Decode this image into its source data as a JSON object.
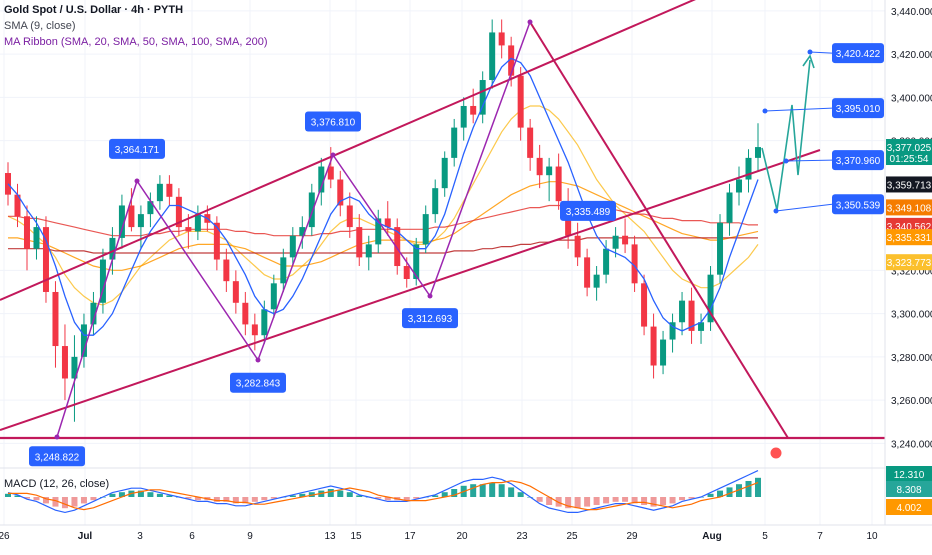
{
  "header": {
    "title": "Gold Spot / U.S. Dollar · 4h · PYTH",
    "sma": "SMA (9, close)",
    "ribbon": "MA Ribbon (SMA, 20, SMA, 50, SMA, 100, SMA, 200)"
  },
  "macd_label": "MACD (12, 26, close)",
  "colors": {
    "up": "#089981",
    "down": "#f23645",
    "trendline": "#c2185b",
    "swing": "#9c27b0",
    "forecast": "#26a69a",
    "label_bg": "#2962ff"
  },
  "chart_data": {
    "type": "candlestick",
    "y_axis": {
      "min": 3230,
      "max": 3445,
      "ticks": [
        "3,440.000",
        "3,420.000",
        "3,400.000",
        "3,380.000",
        "3,320.000",
        "3,300.000",
        "3,280.000",
        "3,260.000",
        "3,240.000"
      ]
    },
    "x_axis": {
      "ticks": [
        "26",
        "Jul",
        "3",
        "6",
        "9",
        "13",
        "15",
        "17",
        "20",
        "23",
        "25",
        "29",
        "Aug",
        "5",
        "7",
        "10"
      ]
    },
    "price_labels": [
      {
        "text": "3,377.025",
        "sub": "01:25:54",
        "value": 3377.025,
        "color": "#089981"
      },
      {
        "text": "3,359.713",
        "value": 3359.713,
        "color": "#131722"
      },
      {
        "text": "3,349.108",
        "value": 3349.108,
        "color": "#f57c00"
      },
      {
        "text": "3,340.562",
        "value": 3340.562,
        "color": "#e53935"
      },
      {
        "text": "3,335.331",
        "value": 3335.331,
        "color": "#ff9800"
      },
      {
        "text": "3,323.773",
        "value": 3323.773,
        "color": "#fbc02d"
      }
    ],
    "point_callouts": [
      {
        "text": "3,248.822",
        "x": 57,
        "price": 3248.822
      },
      {
        "text": "3,364.171",
        "x": 137,
        "price": 3364.171
      },
      {
        "text": "3,282.843",
        "x": 258,
        "price": 3282.843
      },
      {
        "text": "3,376.810",
        "x": 333,
        "price": 3376.81
      },
      {
        "text": "3,312.693",
        "x": 430,
        "price": 3312.693
      },
      {
        "text": "3,335.489",
        "x": 588,
        "price": 3335.489
      }
    ],
    "forecast_labels": [
      {
        "text": "3,420.422",
        "price": 3420.422
      },
      {
        "text": "3,395.010",
        "price": 3395.01
      },
      {
        "text": "3,370.960",
        "price": 3370.96
      },
      {
        "text": "3,350.539",
        "price": 3350.539
      }
    ],
    "macd_labels": [
      {
        "text": "12.310",
        "color": "#089981"
      },
      {
        "text": "8.308",
        "color": "#26a69a"
      },
      {
        "text": "4.002",
        "color": "#ff9800"
      }
    ],
    "candles": [
      [
        3365,
        3370,
        3350,
        3355
      ],
      [
        3355,
        3360,
        3340,
        3345
      ],
      [
        3345,
        3350,
        3320,
        3330
      ],
      [
        3330,
        3345,
        3325,
        3340
      ],
      [
        3340,
        3345,
        3305,
        3310
      ],
      [
        3310,
        3315,
        3275,
        3285
      ],
      [
        3285,
        3295,
        3260,
        3270
      ],
      [
        3270,
        3290,
        3250,
        3280
      ],
      [
        3280,
        3300,
        3275,
        3295
      ],
      [
        3295,
        3310,
        3290,
        3305
      ],
      [
        3305,
        3330,
        3300,
        3325
      ],
      [
        3325,
        3340,
        3318,
        3335
      ],
      [
        3335,
        3355,
        3330,
        3350
      ],
      [
        3350,
        3358,
        3338,
        3340
      ],
      [
        3340,
        3350,
        3330,
        3346
      ],
      [
        3346,
        3356,
        3340,
        3352
      ],
      [
        3352,
        3364,
        3348,
        3360
      ],
      [
        3360,
        3364,
        3350,
        3354
      ],
      [
        3354,
        3358,
        3336,
        3340
      ],
      [
        3340,
        3346,
        3330,
        3338
      ],
      [
        3338,
        3350,
        3334,
        3346
      ],
      [
        3346,
        3350,
        3338,
        3342
      ],
      [
        3342,
        3345,
        3320,
        3325
      ],
      [
        3325,
        3330,
        3310,
        3315
      ],
      [
        3315,
        3320,
        3300,
        3305
      ],
      [
        3305,
        3310,
        3290,
        3295
      ],
      [
        3295,
        3300,
        3283,
        3290
      ],
      [
        3290,
        3306,
        3286,
        3302
      ],
      [
        3302,
        3318,
        3298,
        3314
      ],
      [
        3314,
        3330,
        3310,
        3326
      ],
      [
        3326,
        3340,
        3322,
        3336
      ],
      [
        3336,
        3345,
        3330,
        3340
      ],
      [
        3340,
        3360,
        3336,
        3356
      ],
      [
        3356,
        3372,
        3350,
        3368
      ],
      [
        3368,
        3377,
        3358,
        3362
      ],
      [
        3362,
        3366,
        3345,
        3350
      ],
      [
        3350,
        3356,
        3335,
        3340
      ],
      [
        3340,
        3346,
        3322,
        3326
      ],
      [
        3326,
        3336,
        3320,
        3332
      ],
      [
        3332,
        3348,
        3328,
        3344
      ],
      [
        3344,
        3352,
        3336,
        3340
      ],
      [
        3340,
        3344,
        3318,
        3322
      ],
      [
        3322,
        3326,
        3312,
        3316
      ],
      [
        3316,
        3335,
        3313,
        3332
      ],
      [
        3332,
        3350,
        3328,
        3346
      ],
      [
        3346,
        3362,
        3342,
        3358
      ],
      [
        3358,
        3375,
        3354,
        3372
      ],
      [
        3372,
        3390,
        3368,
        3386
      ],
      [
        3386,
        3400,
        3380,
        3396
      ],
      [
        3396,
        3404,
        3388,
        3392
      ],
      [
        3392,
        3412,
        3388,
        3408
      ],
      [
        3408,
        3436,
        3404,
        3430
      ],
      [
        3430,
        3436,
        3418,
        3424
      ],
      [
        3424,
        3428,
        3405,
        3410
      ],
      [
        3410,
        3414,
        3380,
        3386
      ],
      [
        3386,
        3390,
        3366,
        3372
      ],
      [
        3372,
        3378,
        3358,
        3364
      ],
      [
        3364,
        3372,
        3352,
        3368
      ],
      [
        3368,
        3374,
        3348,
        3352
      ],
      [
        3352,
        3358,
        3330,
        3336
      ],
      [
        3336,
        3342,
        3322,
        3326
      ],
      [
        3326,
        3330,
        3308,
        3312
      ],
      [
        3312,
        3322,
        3306,
        3318
      ],
      [
        3318,
        3334,
        3314,
        3330
      ],
      [
        3330,
        3340,
        3326,
        3336
      ],
      [
        3336,
        3344,
        3328,
        3332
      ],
      [
        3332,
        3336,
        3310,
        3314
      ],
      [
        3314,
        3318,
        3290,
        3294
      ],
      [
        3294,
        3300,
        3270,
        3276
      ],
      [
        3276,
        3292,
        3272,
        3288
      ],
      [
        3288,
        3300,
        3282,
        3296
      ],
      [
        3296,
        3310,
        3290,
        3306
      ],
      [
        3306,
        3312,
        3286,
        3292
      ],
      [
        3292,
        3300,
        3286,
        3296
      ],
      [
        3296,
        3322,
        3292,
        3318
      ],
      [
        3318,
        3346,
        3314,
        3342
      ],
      [
        3342,
        3360,
        3336,
        3356
      ],
      [
        3356,
        3368,
        3350,
        3362
      ],
      [
        3362,
        3376,
        3356,
        3372
      ],
      [
        3372,
        3388,
        3366,
        3377
      ]
    ],
    "sma9": [
      3360,
      3355,
      3348,
      3342,
      3334,
      3322,
      3308,
      3296,
      3290,
      3290,
      3294,
      3300,
      3310,
      3320,
      3330,
      3338,
      3344,
      3350,
      3350,
      3348,
      3346,
      3344,
      3340,
      3334,
      3326,
      3318,
      3308,
      3302,
      3300,
      3302,
      3308,
      3316,
      3326,
      3336,
      3346,
      3352,
      3354,
      3352,
      3346,
      3342,
      3340,
      3338,
      3334,
      3330,
      3330,
      3336,
      3346,
      3360,
      3374,
      3386,
      3396,
      3406,
      3414,
      3418,
      3416,
      3410,
      3400,
      3390,
      3380,
      3370,
      3358,
      3346,
      3336,
      3330,
      3328,
      3326,
      3322,
      3316,
      3306,
      3298,
      3294,
      3292,
      3294,
      3296,
      3302,
      3312,
      3326,
      3338,
      3350,
      3362
    ],
    "ribbon": [
      [
        3345,
        3343,
        3340,
        3336,
        3332,
        3326,
        3318,
        3312,
        3308,
        3305,
        3304,
        3306,
        3310,
        3316,
        3322,
        3326,
        3330,
        3334,
        3336,
        3338,
        3338,
        3338,
        3336,
        3334,
        3330,
        3326,
        3322,
        3318,
        3316,
        3316,
        3318,
        3322,
        3326,
        3332,
        3338,
        3342,
        3344,
        3344,
        3342,
        3340,
        3338,
        3336,
        3334,
        3332,
        3332,
        3334,
        3338,
        3344,
        3352,
        3360,
        3368,
        3376,
        3384,
        3390,
        3394,
        3396,
        3396,
        3394,
        3390,
        3384,
        3378,
        3370,
        3362,
        3356,
        3350,
        3346,
        3342,
        3338,
        3332,
        3326,
        3320,
        3316,
        3314,
        3312,
        3312,
        3314,
        3318,
        3322,
        3326,
        3332
      ],
      [
        3335,
        3335,
        3334,
        3333,
        3332,
        3330,
        3328,
        3326,
        3324,
        3322,
        3321,
        3320,
        3320,
        3321,
        3322,
        3324,
        3326,
        3328,
        3330,
        3331,
        3332,
        3332,
        3332,
        3332,
        3331,
        3330,
        3328,
        3326,
        3324,
        3322,
        3322,
        3322,
        3323,
        3324,
        3326,
        3328,
        3330,
        3332,
        3333,
        3334,
        3334,
        3334,
        3334,
        3333,
        3333,
        3334,
        3335,
        3337,
        3340,
        3343,
        3346,
        3349,
        3352,
        3355,
        3357,
        3359,
        3360,
        3361,
        3361,
        3360,
        3359,
        3357,
        3355,
        3353,
        3351,
        3349,
        3347,
        3345,
        3343,
        3341,
        3339,
        3337,
        3336,
        3335,
        3334,
        3334,
        3335,
        3336,
        3337,
        3338
      ],
      [
        3345,
        3345,
        3344,
        3344,
        3343,
        3342,
        3341,
        3340,
        3339,
        3338,
        3337,
        3336,
        3336,
        3336,
        3336,
        3337,
        3337,
        3338,
        3338,
        3339,
        3339,
        3339,
        3339,
        3339,
        3338,
        3338,
        3337,
        3337,
        3336,
        3336,
        3336,
        3336,
        3336,
        3337,
        3337,
        3338,
        3338,
        3339,
        3339,
        3339,
        3339,
        3339,
        3339,
        3339,
        3339,
        3340,
        3340,
        3341,
        3342,
        3343,
        3344,
        3345,
        3346,
        3347,
        3348,
        3349,
        3349,
        3350,
        3350,
        3350,
        3350,
        3349,
        3349,
        3348,
        3348,
        3347,
        3346,
        3346,
        3345,
        3344,
        3344,
        3343,
        3343,
        3343,
        3342,
        3342,
        3342,
        3342,
        3341,
        3341
      ],
      [
        3330,
        3330,
        3330,
        3330,
        3330,
        3329,
        3329,
        3329,
        3329,
        3328,
        3328,
        3328,
        3328,
        3328,
        3328,
        3328,
        3328,
        3328,
        3328,
        3328,
        3328,
        3328,
        3328,
        3328,
        3328,
        3328,
        3328,
        3328,
        3328,
        3328,
        3328,
        3328,
        3328,
        3328,
        3328,
        3328,
        3328,
        3328,
        3328,
        3328,
        3328,
        3328,
        3328,
        3328,
        3328,
        3328,
        3328,
        3329,
        3329,
        3329,
        3330,
        3330,
        3331,
        3331,
        3332,
        3332,
        3333,
        3333,
        3334,
        3334,
        3334,
        3335,
        3335,
        3335,
        3335,
        3335,
        3335,
        3335,
        3335,
        3335,
        3335,
        3335,
        3335,
        3335,
        3335,
        3335,
        3335,
        3335,
        3335,
        3335
      ]
    ],
    "macd_hist": [
      2,
      1,
      -1,
      -2,
      -4,
      -6,
      -7,
      -6,
      -4,
      -2,
      0,
      2,
      3,
      4,
      4,
      3,
      2,
      1,
      0,
      -1,
      -2,
      -2,
      -3,
      -3,
      -4,
      -4,
      -3,
      -2,
      -1,
      0,
      1,
      2,
      3,
      4,
      5,
      4,
      3,
      1,
      0,
      -1,
      -2,
      -2,
      -2,
      -1,
      0,
      1,
      3,
      5,
      7,
      8,
      8,
      9,
      8,
      6,
      3,
      0,
      -3,
      -5,
      -6,
      -7,
      -7,
      -6,
      -5,
      -4,
      -3,
      -3,
      -4,
      -5,
      -6,
      -5,
      -4,
      -2,
      -1,
      0,
      2,
      4,
      6,
      8,
      10,
      12
    ]
  }
}
